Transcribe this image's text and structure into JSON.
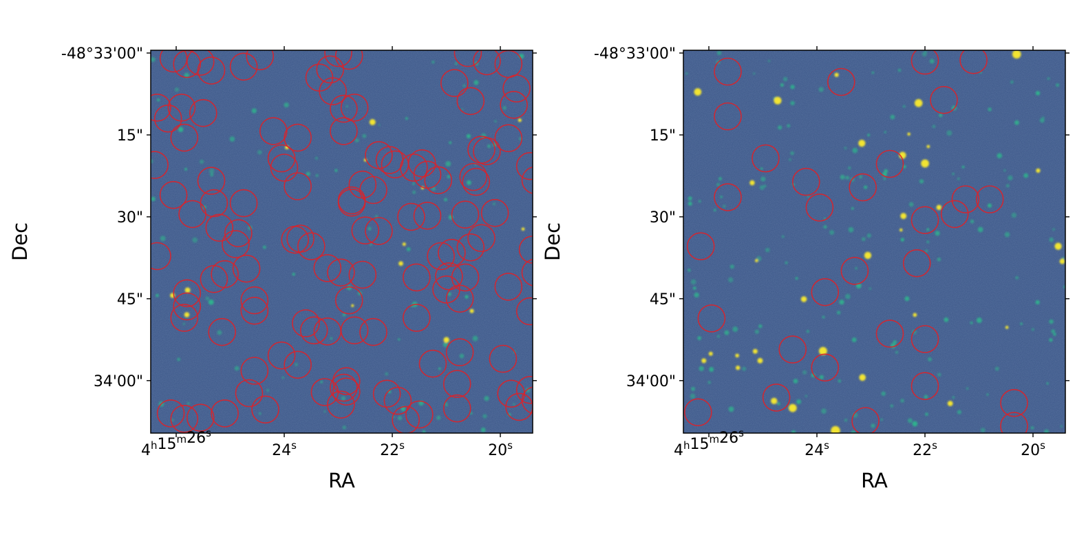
{
  "colors": {
    "background": "#3b5688",
    "region_circle": "#d8242c",
    "bright_source": "#f2e430",
    "faint_source": "#2fb18d"
  },
  "panels": [
    {
      "name": "left",
      "x_ticks": [
        {
          "ra_s": 26,
          "label_main": "4",
          "label_sup1": "h",
          "label_mid": "15",
          "label_sup2": "m",
          "label_end": "26",
          "label_sup3": "s"
        },
        {
          "ra_s": 24,
          "label_main": "24",
          "label_sup1": "s"
        },
        {
          "ra_s": 22,
          "label_main": "22",
          "label_sup1": "s"
        },
        {
          "ra_s": 20,
          "label_main": "20",
          "label_sup1": "s"
        }
      ],
      "y_ticks": [
        {
          "dec": 0,
          "label": "-48°33'00\""
        },
        {
          "dec": 15,
          "label": "15\""
        },
        {
          "dec": 30,
          "label": "30\""
        },
        {
          "dec": 45,
          "label": "45\""
        },
        {
          "dec": 60,
          "label": "34'00\""
        }
      ],
      "xlabel": "RA",
      "ylabel": "Dec",
      "circles": [
        [
          26.05,
          1.0
        ],
        [
          25.8,
          2.0
        ],
        [
          25.55,
          1.6
        ],
        [
          25.35,
          3.2
        ],
        [
          25.9,
          10.0
        ],
        [
          25.5,
          11.0
        ],
        [
          26.15,
          12.0
        ],
        [
          25.85,
          15.5
        ],
        [
          24.75,
          2.5
        ],
        [
          24.45,
          0.6
        ],
        [
          24.2,
          14.3
        ],
        [
          23.75,
          15.5
        ],
        [
          23.35,
          4.5
        ],
        [
          23.15,
          3.0
        ],
        [
          23.0,
          0.0
        ],
        [
          22.8,
          0.5
        ],
        [
          23.1,
          7.0
        ],
        [
          22.9,
          10.2
        ],
        [
          22.7,
          10.0
        ],
        [
          22.9,
          14.3
        ],
        [
          22.25,
          18.7
        ],
        [
          22.05,
          19.6
        ],
        [
          21.95,
          20.4
        ],
        [
          21.6,
          21.0
        ],
        [
          21.45,
          20.2
        ],
        [
          21.35,
          22.3
        ],
        [
          21.15,
          23.3
        ],
        [
          20.85,
          5.5
        ],
        [
          20.55,
          8.8
        ],
        [
          20.6,
          0.0
        ],
        [
          20.25,
          1.5
        ],
        [
          19.85,
          2.0
        ],
        [
          19.7,
          6.5
        ],
        [
          19.75,
          9.5
        ],
        [
          19.85,
          15.6
        ],
        [
          20.35,
          17.7
        ],
        [
          20.25,
          18.0
        ],
        [
          20.5,
          22.7
        ],
        [
          20.45,
          23.6
        ],
        [
          19.45,
          20.7
        ],
        [
          19.35,
          23.3
        ],
        [
          26.35,
          10.0
        ],
        [
          26.4,
          20.5
        ],
        [
          26.05,
          26.0
        ],
        [
          25.7,
          29.5
        ],
        [
          25.3,
          27.5
        ],
        [
          25.2,
          32.0
        ],
        [
          24.75,
          27.5
        ],
        [
          24.85,
          33.0
        ],
        [
          24.9,
          35.0
        ],
        [
          24.05,
          19.3
        ],
        [
          24.0,
          21.0
        ],
        [
          23.75,
          24.4
        ],
        [
          25.35,
          23.4
        ],
        [
          22.75,
          27.0
        ],
        [
          22.75,
          27.4
        ],
        [
          22.5,
          32.5
        ],
        [
          22.25,
          32.6
        ],
        [
          22.55,
          24.1
        ],
        [
          22.35,
          25.1
        ],
        [
          21.65,
          30.0
        ],
        [
          21.35,
          29.8
        ],
        [
          20.65,
          29.6
        ],
        [
          20.1,
          29.3
        ],
        [
          20.35,
          33.9
        ],
        [
          20.55,
          35.6
        ],
        [
          20.9,
          36.6
        ],
        [
          21.1,
          37.2
        ],
        [
          20.95,
          40.9
        ],
        [
          20.65,
          41.1
        ],
        [
          21.0,
          43.3
        ],
        [
          21.55,
          41.1
        ],
        [
          20.75,
          45.0
        ],
        [
          19.85,
          42.8
        ],
        [
          19.4,
          36.0
        ],
        [
          19.35,
          40.2
        ],
        [
          19.45,
          47.3
        ],
        [
          26.35,
          37.2
        ],
        [
          25.8,
          44.0
        ],
        [
          25.8,
          46.4
        ],
        [
          25.85,
          48.5
        ],
        [
          25.3,
          41.4
        ],
        [
          25.1,
          40.5
        ],
        [
          24.7,
          39.5
        ],
        [
          24.55,
          45.3
        ],
        [
          24.55,
          47.2
        ],
        [
          25.15,
          51.1
        ],
        [
          23.8,
          34.2
        ],
        [
          23.7,
          34.0
        ],
        [
          23.5,
          35.4
        ],
        [
          23.2,
          39.4
        ],
        [
          22.95,
          40.2
        ],
        [
          22.55,
          40.6
        ],
        [
          22.8,
          45.3
        ],
        [
          22.7,
          50.8
        ],
        [
          22.35,
          51.1
        ],
        [
          23.2,
          51.0
        ],
        [
          23.6,
          49.5
        ],
        [
          23.45,
          50.8
        ],
        [
          21.55,
          48.5
        ],
        [
          24.55,
          58.2
        ],
        [
          24.05,
          55.4
        ],
        [
          23.75,
          57.1
        ],
        [
          23.25,
          62.1
        ],
        [
          22.9,
          61.3
        ],
        [
          22.85,
          62.0
        ],
        [
          22.85,
          60.1
        ],
        [
          22.95,
          64.4
        ],
        [
          22.1,
          62.4
        ],
        [
          21.9,
          63.7
        ],
        [
          21.25,
          56.9
        ],
        [
          20.75,
          54.8
        ],
        [
          20.8,
          60.6
        ],
        [
          20.8,
          65.1
        ],
        [
          19.95,
          56.0
        ],
        [
          19.8,
          62.4
        ],
        [
          19.65,
          64.8
        ],
        [
          19.45,
          61.7
        ],
        [
          19.35,
          63.6
        ],
        [
          26.1,
          66.0
        ],
        [
          25.85,
          67.0
        ],
        [
          25.55,
          66.8
        ],
        [
          25.1,
          66.0
        ],
        [
          24.65,
          62.3
        ],
        [
          24.35,
          65.3
        ],
        [
          21.75,
          67.2
        ],
        [
          21.5,
          66.2
        ]
      ]
    },
    {
      "name": "right",
      "x_ticks": [
        {
          "ra_s": 26,
          "label_main": "4",
          "label_sup1": "h",
          "label_mid": "15",
          "label_sup2": "m",
          "label_end": "26",
          "label_sup3": "s"
        },
        {
          "ra_s": 24,
          "label_main": "24",
          "label_sup1": "s"
        },
        {
          "ra_s": 22,
          "label_main": "22",
          "label_sup1": "s"
        },
        {
          "ra_s": 20,
          "label_main": "20",
          "label_sup1": "s"
        }
      ],
      "y_ticks": [
        {
          "dec": 0,
          "label": "-48°33'00\""
        },
        {
          "dec": 15,
          "label": "15\""
        },
        {
          "dec": 30,
          "label": "30\""
        },
        {
          "dec": 45,
          "label": "45\""
        },
        {
          "dec": 60,
          "label": "34'00\""
        }
      ],
      "xlabel": "RA",
      "ylabel": "Dec",
      "circles": [
        [
          25.65,
          3.4
        ],
        [
          25.65,
          11.6
        ],
        [
          24.95,
          19.3
        ],
        [
          25.65,
          26.4
        ],
        [
          26.15,
          35.4
        ],
        [
          25.95,
          48.6
        ],
        [
          24.45,
          54.3
        ],
        [
          24.75,
          63.1
        ],
        [
          26.2,
          65.8
        ],
        [
          24.2,
          23.6
        ],
        [
          23.95,
          28.3
        ],
        [
          23.55,
          5.3
        ],
        [
          23.3,
          39.9
        ],
        [
          23.85,
          43.8
        ],
        [
          23.85,
          57.6
        ],
        [
          23.1,
          67.4
        ],
        [
          23.15,
          24.6
        ],
        [
          22.65,
          20.3
        ],
        [
          22.0,
          1.4
        ],
        [
          21.65,
          8.6
        ],
        [
          21.1,
          1.3
        ],
        [
          21.25,
          26.8
        ],
        [
          21.45,
          29.5
        ],
        [
          20.8,
          26.8
        ],
        [
          22.0,
          30.6
        ],
        [
          22.15,
          38.5
        ],
        [
          22.65,
          51.4
        ],
        [
          22.0,
          52.4
        ],
        [
          22.0,
          61.0
        ],
        [
          20.35,
          64.1
        ],
        [
          20.35,
          68.3
        ]
      ]
    }
  ]
}
